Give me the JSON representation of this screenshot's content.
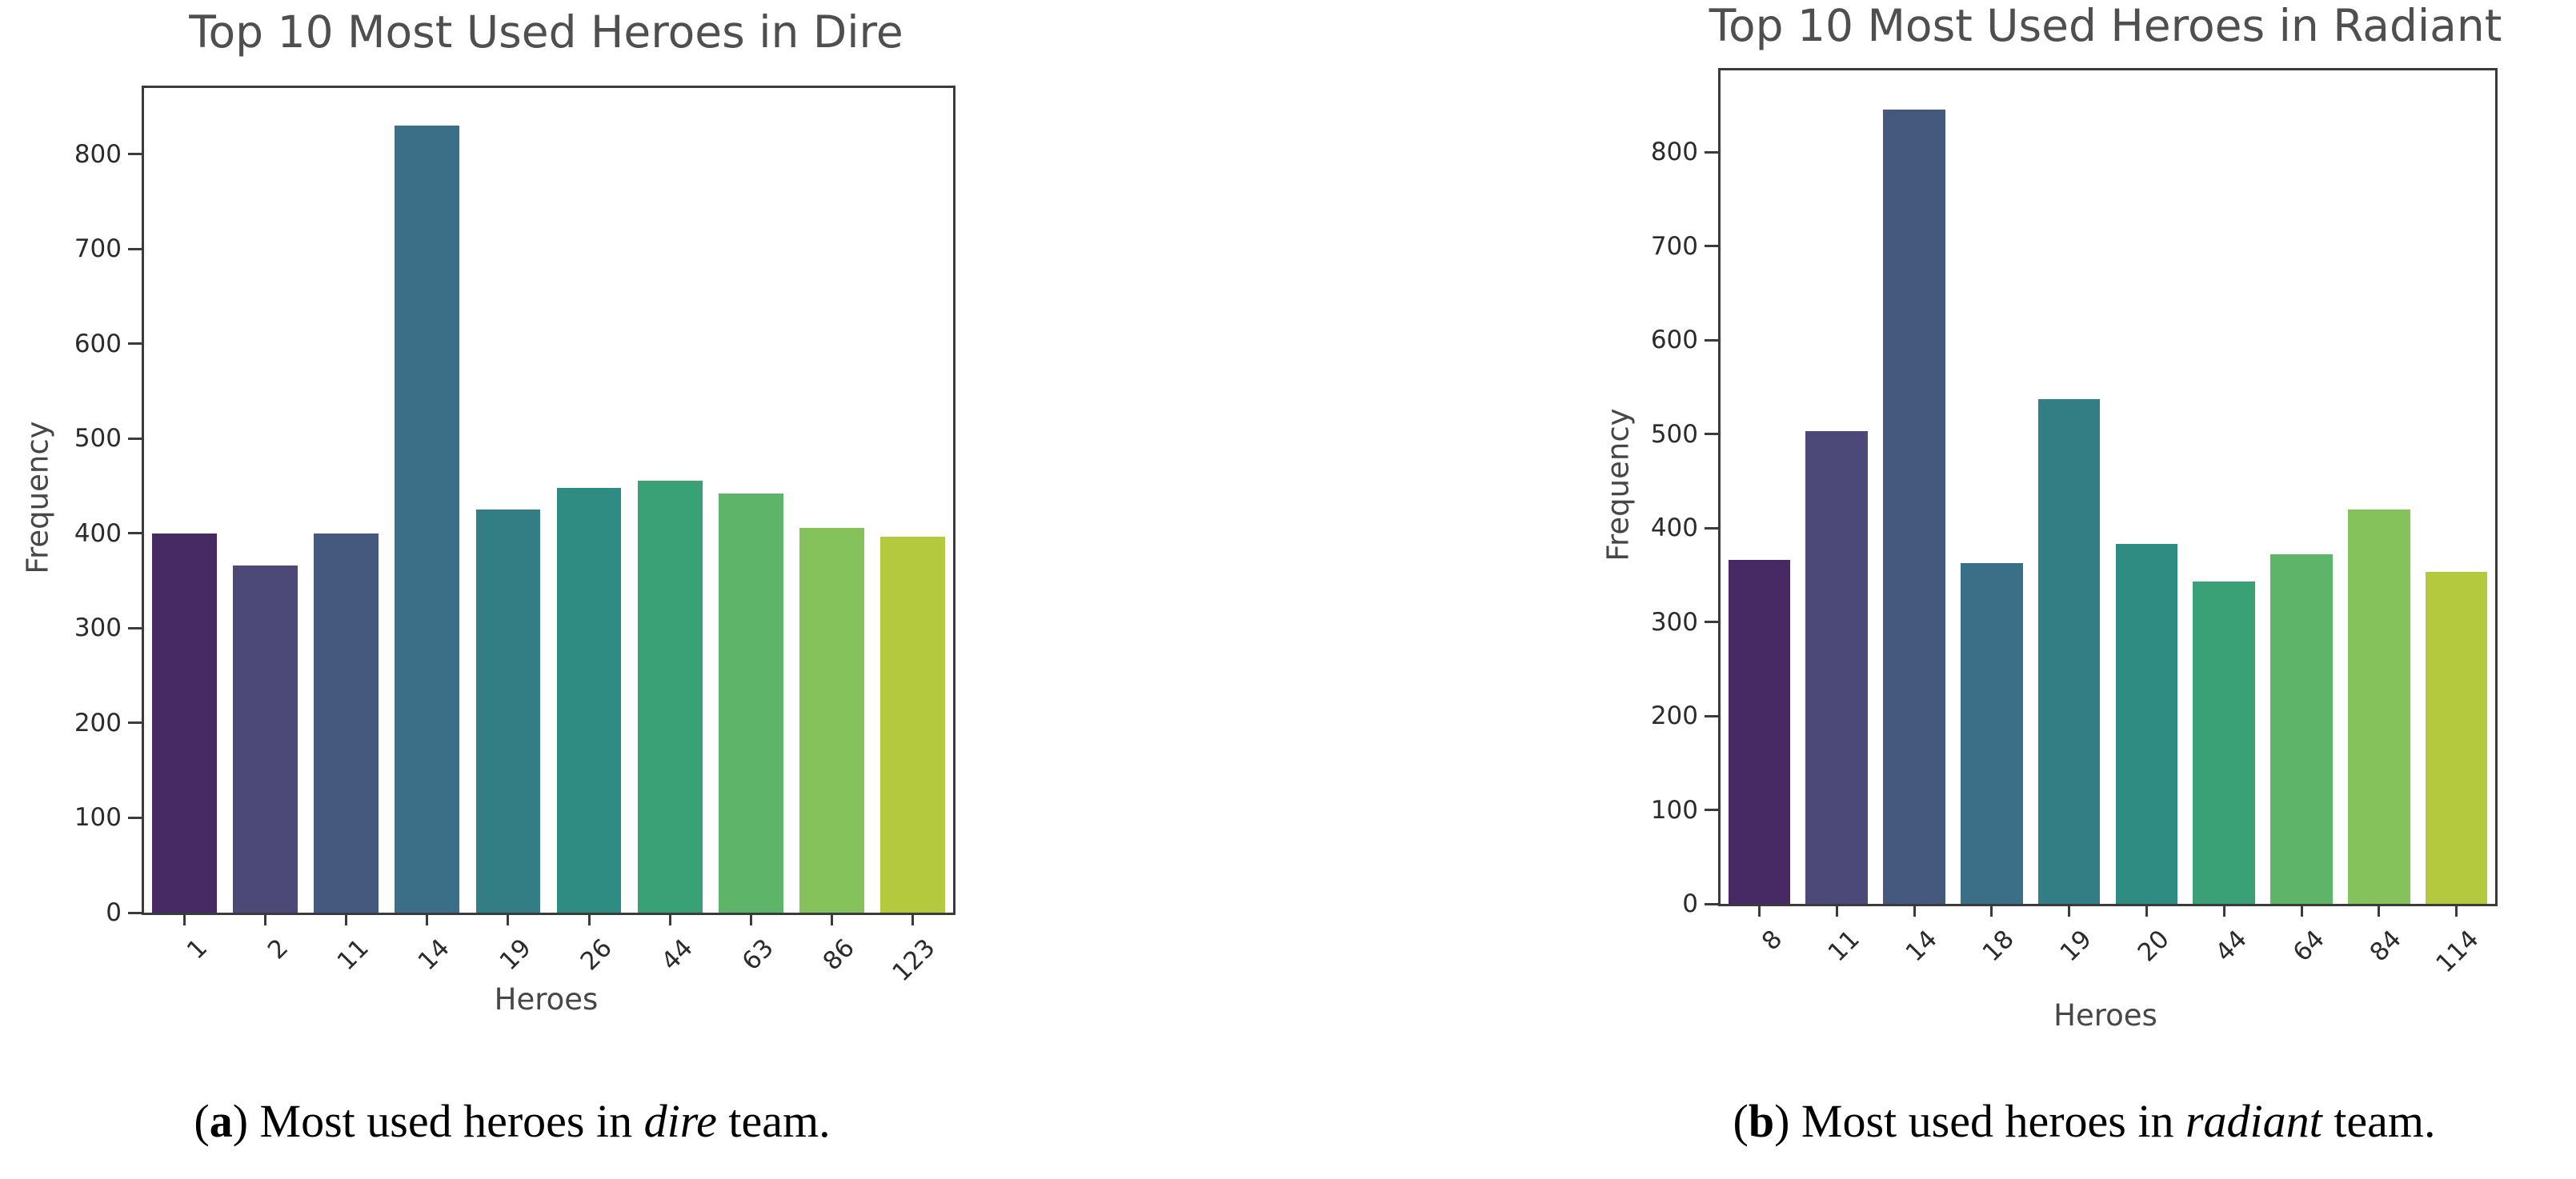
{
  "colors": {
    "bar_palette": [
      "#472a63",
      "#4c4878",
      "#45597e",
      "#3a6f87",
      "#337d84",
      "#2e8c83",
      "#3aa076",
      "#5eb469",
      "#86c25c",
      "#b5c93e"
    ],
    "spine": "#3b3b3b",
    "title_text": "#4f4f4f",
    "tick_text": "#2b2b2b",
    "axis_label_text": "#474747"
  },
  "chart_data": [
    {
      "id": "dire",
      "type": "bar",
      "title": "Top 10 Most Used Heroes in Dire",
      "xlabel": "Heroes",
      "ylabel": "Frequency",
      "categories": [
        "1",
        "2",
        "11",
        "14",
        "19",
        "26",
        "44",
        "63",
        "86",
        "123"
      ],
      "values": [
        400,
        366,
        400,
        830,
        425,
        448,
        456,
        442,
        406,
        397
      ],
      "yticks": [
        0,
        100,
        200,
        300,
        400,
        500,
        600,
        700,
        800
      ],
      "ylim": [
        0,
        870
      ],
      "bar_width_frac": 0.8,
      "grid": false,
      "legend": "none"
    },
    {
      "id": "radiant",
      "type": "bar",
      "title": "Top 10 Most Used Heroes in Radiant",
      "xlabel": "Heroes",
      "ylabel": "Frequency",
      "categories": [
        "8",
        "11",
        "14",
        "18",
        "19",
        "20",
        "44",
        "64",
        "84",
        "114"
      ],
      "values": [
        366,
        503,
        845,
        363,
        537,
        383,
        343,
        372,
        420,
        353
      ],
      "yticks": [
        0,
        100,
        200,
        300,
        400,
        500,
        600,
        700,
        800
      ],
      "ylim": [
        0,
        887
      ],
      "bar_width_frac": 0.8,
      "grid": false,
      "legend": "none"
    }
  ],
  "captions": {
    "a": {
      "open": "(",
      "letter": "a",
      "mid": ") Most used heroes in ",
      "italic": "dire",
      "tail": " team."
    },
    "b": {
      "open": "(",
      "letter": "b",
      "mid": ") Most used heroes in ",
      "italic": "radiant",
      "tail": " team."
    }
  }
}
